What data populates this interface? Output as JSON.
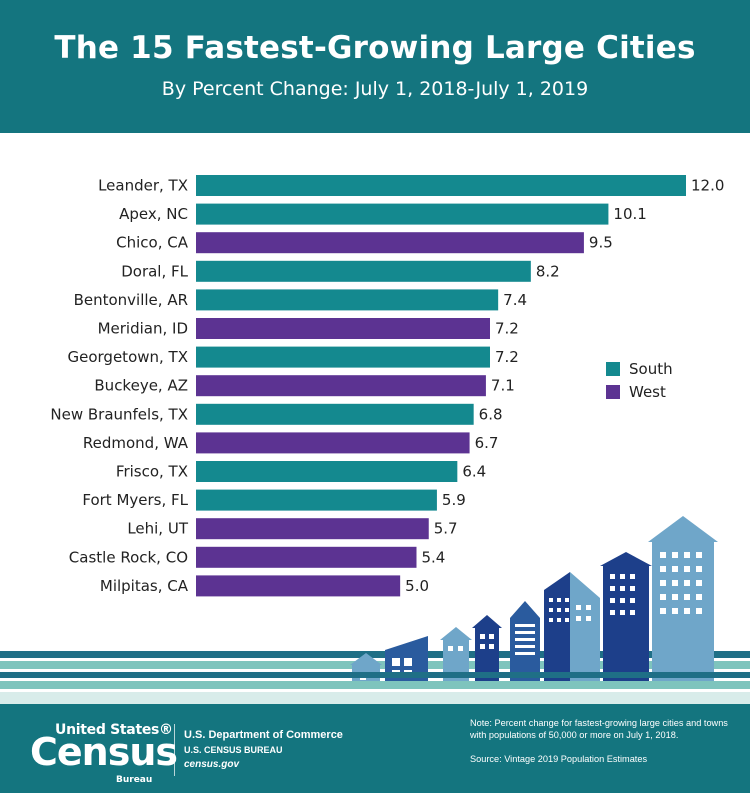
{
  "header": {
    "title": "The 15 Fastest-Growing Large Cities",
    "subtitle": "By Percent Change: July 1, 2018-July 1, 2019"
  },
  "colors": {
    "header_bg": "#14757f",
    "south": "#14898f",
    "west": "#5c3392",
    "stripe_dark": "#1f6f86",
    "stripe_light": "#7ec4bd"
  },
  "chart_data": {
    "type": "bar",
    "orientation": "horizontal",
    "title": "The 15 Fastest-Growing Large Cities",
    "subtitle": "By Percent Change: July 1, 2018-July 1, 2019",
    "xlabel": "",
    "ylabel": "",
    "xlim": [
      0,
      12.0
    ],
    "grid": false,
    "legend_position": "right",
    "categories": [
      "Leander, TX",
      "Apex, NC",
      "Chico, CA",
      "Doral, FL",
      "Bentonville, AR",
      "Meridian, ID",
      "Georgetown, TX",
      "Buckeye, AZ",
      "New Braunfels, TX",
      "Redmond, WA",
      "Frisco, TX",
      "Fort Myers, FL",
      "Lehi, UT",
      "Castle Rock, CO",
      "Milpitas, CA"
    ],
    "values": [
      12.0,
      10.1,
      9.5,
      8.2,
      7.4,
      7.2,
      7.2,
      7.1,
      6.8,
      6.7,
      6.4,
      5.9,
      5.7,
      5.4,
      5.0
    ],
    "value_labels": [
      "12.0",
      "10.1",
      "9.5",
      "8.2",
      "7.4",
      "7.2",
      "7.2",
      "7.1",
      "6.8",
      "6.7",
      "6.4",
      "5.9",
      "5.7",
      "5.4",
      "5.0"
    ],
    "regions": [
      "South",
      "South",
      "West",
      "South",
      "South",
      "West",
      "South",
      "West",
      "South",
      "West",
      "South",
      "South",
      "West",
      "West",
      "West"
    ],
    "legend": [
      {
        "name": "South",
        "color": "#14898f"
      },
      {
        "name": "West",
        "color": "#5c3392"
      }
    ]
  },
  "footer": {
    "logo_top": "United States®",
    "logo_main": "Census",
    "logo_sub": "Bureau",
    "dept": "U.S. Department of Commerce",
    "bureau": "U.S. CENSUS BUREAU",
    "site": "census.gov",
    "note": "Note: Percent change for fastest-growing large cities and towns with populations of 50,000 or more on July 1, 2018.",
    "source": "Source: Vintage 2019 Population Estimates"
  }
}
